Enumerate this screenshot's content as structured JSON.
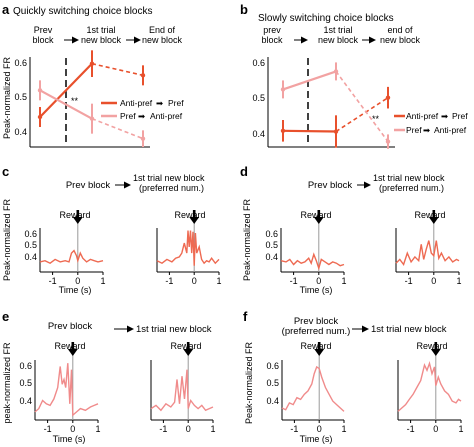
{
  "colors": {
    "anti_pref": "#e8502c",
    "pref": "#f2a2a2",
    "trace": "#ee6a52",
    "trace_light": "#f08b8b",
    "axis": "#000000",
    "vline": "#9a9a9a"
  },
  "panels": {
    "a": {
      "letter": "a",
      "title": "Quickly switching choice blocks",
      "seq": [
        "Prev block",
        "1st trial new block",
        "End of new block"
      ],
      "ylabel": "Peak-normalized FR",
      "yticks": [
        "0.6",
        "0.5",
        "0.4"
      ],
      "legend": [
        "Anti-pref",
        "Pref",
        "Pref",
        "Anti-pref"
      ],
      "sig": "**"
    },
    "b": {
      "letter": "b",
      "title": "Slowly switching choice blocks",
      "seq": [
        "prev block",
        "1st trial new block",
        "end of new block"
      ],
      "yticks": [
        "0.6",
        "0.5",
        "0.4"
      ],
      "legend": [
        "Anti-pref",
        "Pref",
        "Pref",
        "Anti-pref"
      ],
      "sig": "**"
    },
    "c": {
      "letter": "c",
      "header_left": "Prev block",
      "header_right": "1st trial new block (preferred num.)",
      "ylabel": "Peak-normalized FR",
      "reward": "Reward",
      "yticks": [
        "0.6",
        "0.5",
        "0.4"
      ]
    },
    "d": {
      "letter": "d",
      "header_left": "Prev block",
      "header_right": "1st trial new block (preferred num.)",
      "ylabel": "Peak-normalized FR",
      "reward": "Reward",
      "yticks": [
        "0.6",
        "0.5",
        "0.4"
      ]
    },
    "e": {
      "letter": "e",
      "header_left": "Prev block",
      "header_right": "1st trial new block",
      "ylabel": "peak-normalized FR",
      "reward": "Reward",
      "yticks": [
        "0.6",
        "0.5",
        "0.4"
      ]
    },
    "f": {
      "letter": "f",
      "header_left": "Prev block (preferred num.)",
      "header_right": "1st trial new block",
      "ylabel": "Peak-normalized FR",
      "reward": "Reward",
      "yticks": [
        "0.6",
        "0.5",
        "0.4"
      ]
    }
  },
  "time_axis": {
    "label": "Time (s)",
    "ticks": [
      "-1",
      "0",
      "1"
    ]
  },
  "chart_data": [
    {
      "panel": "a",
      "type": "line",
      "x": [
        "Prev block",
        "1st trial new block",
        "End of new block"
      ],
      "ylim": [
        0.35,
        0.62
      ],
      "ylabel": "Peak-normalized FR",
      "series": [
        {
          "name": "Anti-pref → Pref",
          "values": [
            0.44,
            0.6,
            0.565
          ],
          "err": [
            0.03,
            0.04,
            0.03
          ]
        },
        {
          "name": "Pref → Anti-pref",
          "values": [
            0.52,
            0.435,
            0.375
          ],
          "err": [
            0.03,
            0.045,
            0.025
          ]
        }
      ]
    },
    {
      "panel": "b",
      "type": "line",
      "x": [
        "prev block",
        "1st trial new block",
        "end of new block"
      ],
      "ylim": [
        0.36,
        0.61
      ],
      "series": [
        {
          "name": "Anti-pref → Pref",
          "values": [
            0.405,
            0.403,
            0.497
          ],
          "err": [
            0.03,
            0.045,
            0.03
          ]
        },
        {
          "name": "Pref → Anti-pref",
          "values": [
            0.52,
            0.57,
            0.375
          ],
          "err": [
            0.025,
            0.025,
            0.02
          ]
        }
      ]
    },
    {
      "panel": "c-left",
      "type": "line",
      "xlim": [
        -1.5,
        1
      ],
      "ylim": [
        0.35,
        0.7
      ],
      "x": [
        -1.5,
        -1.3,
        -1.1,
        -0.9,
        -0.7,
        -0.5,
        -0.35,
        -0.25,
        -0.15,
        -0.05,
        0,
        0.1,
        0.2,
        0.35,
        0.5,
        0.65,
        0.8,
        1
      ],
      "values": [
        0.43,
        0.44,
        0.42,
        0.45,
        0.43,
        0.44,
        0.43,
        0.5,
        0.52,
        0.48,
        0.44,
        0.5,
        0.46,
        0.43,
        0.45,
        0.44,
        0.43,
        0.44
      ]
    },
    {
      "panel": "c-right",
      "type": "line",
      "xlim": [
        -1.5,
        1
      ],
      "ylim": [
        0.35,
        0.7
      ],
      "x": [
        -1.5,
        -1.3,
        -1.1,
        -0.9,
        -0.75,
        -0.6,
        -0.5,
        -0.4,
        -0.3,
        -0.25,
        -0.2,
        -0.15,
        -0.1,
        -0.05,
        0,
        0.05,
        0.1,
        0.2,
        0.3,
        0.4,
        0.5,
        0.6,
        0.7,
        0.85,
        1
      ],
      "values": [
        0.44,
        0.42,
        0.45,
        0.43,
        0.46,
        0.47,
        0.5,
        0.58,
        0.5,
        0.68,
        0.55,
        0.68,
        0.5,
        0.67,
        0.4,
        0.66,
        0.5,
        0.55,
        0.45,
        0.42,
        0.44,
        0.43,
        0.46,
        0.42,
        0.45
      ]
    },
    {
      "panel": "d-left",
      "type": "line",
      "xlim": [
        -1.5,
        1
      ],
      "ylim": [
        0.35,
        0.7
      ],
      "x": [
        -1.5,
        -1.3,
        -1.15,
        -1.0,
        -0.85,
        -0.7,
        -0.55,
        -0.4,
        -0.3,
        -0.2,
        -0.1,
        0,
        0.1,
        0.25,
        0.4,
        0.55,
        0.7,
        0.85,
        1
      ],
      "values": [
        0.44,
        0.43,
        0.45,
        0.41,
        0.44,
        0.42,
        0.43,
        0.46,
        0.42,
        0.49,
        0.44,
        0.38,
        0.45,
        0.43,
        0.41,
        0.43,
        0.42,
        0.4,
        0.41
      ]
    },
    {
      "panel": "d-right",
      "type": "line",
      "xlim": [
        -1.5,
        1
      ],
      "ylim": [
        0.35,
        0.7
      ],
      "x": [
        -1.5,
        -1.35,
        -1.2,
        -1.05,
        -0.9,
        -0.75,
        -0.6,
        -0.5,
        -0.4,
        -0.3,
        -0.2,
        -0.1,
        0,
        0.1,
        0.2,
        0.3,
        0.45,
        0.6,
        0.75,
        0.9,
        1
      ],
      "values": [
        0.42,
        0.45,
        0.41,
        0.5,
        0.43,
        0.47,
        0.44,
        0.57,
        0.45,
        0.53,
        0.6,
        0.5,
        0.48,
        0.6,
        0.46,
        0.5,
        0.44,
        0.47,
        0.43,
        0.45,
        0.44
      ]
    },
    {
      "panel": "e-left",
      "type": "line",
      "xlim": [
        -1.5,
        1
      ],
      "ylim": [
        0.35,
        0.72
      ],
      "x": [
        -1.5,
        -1.35,
        -1.2,
        -1.05,
        -0.9,
        -0.75,
        -0.6,
        -0.5,
        -0.42,
        -0.35,
        -0.28,
        -0.2,
        -0.12,
        -0.05,
        0,
        0.15,
        0.3,
        0.5,
        0.7,
        0.85,
        1
      ],
      "values": [
        0.4,
        0.42,
        0.47,
        0.45,
        0.44,
        0.48,
        0.55,
        0.68,
        0.57,
        0.6,
        0.55,
        0.7,
        0.45,
        0.66,
        0.38,
        0.4,
        0.42,
        0.41,
        0.43,
        0.44,
        0.45
      ]
    },
    {
      "panel": "e-right",
      "type": "line",
      "xlim": [
        -1.5,
        1
      ],
      "ylim": [
        0.35,
        0.72
      ],
      "x": [
        -1.5,
        -1.3,
        -1.1,
        -0.9,
        -0.7,
        -0.55,
        -0.45,
        -0.35,
        -0.25,
        -0.15,
        -0.05,
        0,
        0.1,
        0.25,
        0.4,
        0.55,
        0.7,
        0.85,
        1
      ],
      "values": [
        0.42,
        0.44,
        0.41,
        0.45,
        0.43,
        0.46,
        0.6,
        0.45,
        0.62,
        0.48,
        0.66,
        0.42,
        0.47,
        0.44,
        0.42,
        0.44,
        0.41,
        0.42,
        0.43
      ]
    },
    {
      "panel": "f-left",
      "type": "line",
      "xlim": [
        -1.5,
        1
      ],
      "ylim": [
        0.35,
        0.7
      ],
      "x": [
        -1.5,
        -1.35,
        -1.2,
        -1.05,
        -0.9,
        -0.75,
        -0.6,
        -0.45,
        -0.3,
        -0.2,
        -0.1,
        0,
        0.1,
        0.25,
        0.4,
        0.55,
        0.7,
        0.85,
        1
      ],
      "values": [
        0.42,
        0.41,
        0.45,
        0.44,
        0.48,
        0.47,
        0.5,
        0.52,
        0.56,
        0.62,
        0.66,
        0.65,
        0.6,
        0.54,
        0.5,
        0.46,
        0.44,
        0.42,
        0.4
      ]
    },
    {
      "panel": "f-right",
      "type": "line",
      "xlim": [
        -1.5,
        1
      ],
      "ylim": [
        0.35,
        0.7
      ],
      "x": [
        -1.5,
        -1.35,
        -1.2,
        -1.05,
        -0.9,
        -0.75,
        -0.6,
        -0.45,
        -0.35,
        -0.25,
        -0.15,
        -0.05,
        0,
        0.1,
        0.2,
        0.35,
        0.5,
        0.65,
        0.8,
        0.9,
        1
      ],
      "values": [
        0.4,
        0.42,
        0.44,
        0.47,
        0.5,
        0.54,
        0.58,
        0.67,
        0.64,
        0.68,
        0.62,
        0.66,
        0.55,
        0.6,
        0.56,
        0.52,
        0.5,
        0.46,
        0.45,
        0.47,
        0.46
      ]
    }
  ]
}
